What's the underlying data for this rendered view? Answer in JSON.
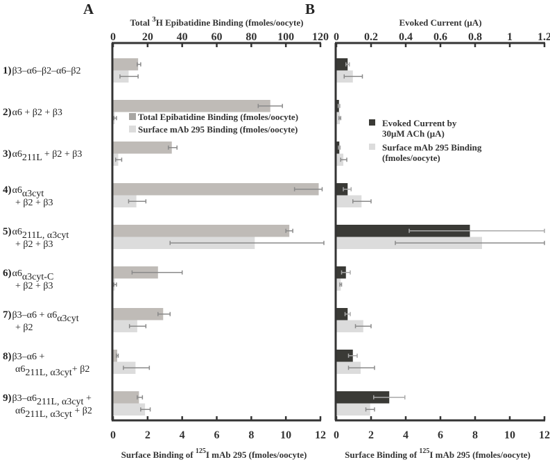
{
  "panels": {
    "A": {
      "letter": "A"
    },
    "B": {
      "letter": "B"
    }
  },
  "legendA": {
    "items": [
      {
        "label": "Total Epibatidine Binding (fmoles/oocyte)",
        "color": "#bfbbb7"
      },
      {
        "label": "Surface mAb 295 Binding (fmoles/oocyte)",
        "color": "#dcdcdc"
      }
    ]
  },
  "legendB": {
    "items": [
      {
        "lines": [
          "Evoked Current by",
          "30μM ACh (μA)"
        ],
        "color": "#3a3a36"
      },
      {
        "lines": [
          "Surface mAb 295 Binding",
          "(fmoles/oocyte)"
        ],
        "color": "#dcdcdc"
      }
    ]
  },
  "categories": [
    {
      "num": "1)",
      "lines": [
        [
          [
            "β3–α6–β2–α6–β2",
            ""
          ]
        ]
      ]
    },
    {
      "num": "2)",
      "lines": [
        [
          [
            "α6 + β2 + β3",
            ""
          ]
        ]
      ]
    },
    {
      "num": "3)",
      "lines": [
        [
          [
            "α6",
            ""
          ],
          [
            "211L",
            "sub"
          ],
          [
            " + β2 + β3",
            ""
          ]
        ]
      ]
    },
    {
      "num": "4)",
      "lines": [
        [
          [
            "α6",
            ""
          ],
          [
            "α3cyt",
            "sub"
          ]
        ],
        [
          [
            "+ β2 + β3",
            ""
          ]
        ]
      ]
    },
    {
      "num": "5)",
      "lines": [
        [
          [
            "α6",
            ""
          ],
          [
            "211L, α3cyt",
            "sub"
          ]
        ],
        [
          [
            "+ β2 + β3",
            ""
          ]
        ]
      ]
    },
    {
      "num": "6)",
      "lines": [
        [
          [
            "α6",
            ""
          ],
          [
            "α3cyt-C",
            "sub"
          ]
        ],
        [
          [
            "+ β2 + β3",
            ""
          ]
        ]
      ]
    },
    {
      "num": "7)",
      "lines": [
        [
          [
            "β3–α6 + α6",
            ""
          ],
          [
            "α3cyt",
            "sub"
          ]
        ],
        [
          [
            "+ β2",
            ""
          ]
        ]
      ]
    },
    {
      "num": "8)",
      "lines": [
        [
          [
            "β3–α6 +",
            ""
          ]
        ],
        [
          [
            "α6",
            ""
          ],
          [
            "211L, α3cyt",
            "sub"
          ],
          [
            "+ β2",
            ""
          ]
        ]
      ]
    },
    {
      "num": "9)",
      "lines": [
        [
          [
            "β3–α6",
            ""
          ],
          [
            "211L, α3cyt",
            "sub"
          ],
          [
            " +",
            ""
          ]
        ],
        [
          [
            "α6",
            ""
          ],
          [
            "211L, α3cyt",
            "sub"
          ],
          [
            " + β2",
            ""
          ]
        ]
      ]
    }
  ],
  "chart_data": [
    {
      "type": "bar",
      "orientation": "horizontal",
      "panel": "A",
      "title": "",
      "top_axis": {
        "label": "Total 3H Epibatidine Binding (fmoles/oocyte)",
        "label_sup": "3",
        "range": [
          0,
          120
        ],
        "ticks": [
          "0",
          "20",
          "40",
          "60",
          "80",
          "100",
          "120"
        ]
      },
      "bottom_axis": {
        "label": "Surface Binding of 125I mAb 295 (fmoles/oocyte)",
        "label_sup": "125",
        "range": [
          0,
          12
        ],
        "ticks": [
          "0",
          "2",
          "4",
          "6",
          "8",
          "10",
          "12"
        ]
      },
      "categories": [
        "1",
        "2",
        "3",
        "4",
        "5",
        "6",
        "7",
        "8",
        "9"
      ],
      "series": [
        {
          "name": "Total Epibatidine Binding (fmoles/oocyte)",
          "axis": "top",
          "color": "#bfbbb7",
          "values": [
            14.5,
            91,
            34,
            119,
            102,
            26,
            29,
            2.4,
            15
          ],
          "err_low": [
            14,
            84,
            32,
            105,
            100,
            11,
            26,
            2,
            14
          ],
          "err_high": [
            16,
            98,
            37,
            121,
            104,
            40,
            33,
            3,
            17
          ]
        },
        {
          "name": "Surface mAb 295 Binding (fmoles/oocyte)",
          "axis": "bottom",
          "color": "#dcdcdc",
          "values": [
            0.9,
            0.1,
            0.3,
            1.35,
            8.2,
            0.1,
            1.4,
            1.3,
            1.85
          ],
          "err_low": [
            0.4,
            0.05,
            0.15,
            0.9,
            3.3,
            0.05,
            0.95,
            0.6,
            1.6
          ],
          "err_high": [
            1.45,
            0.2,
            0.5,
            1.9,
            12.2,
            0.2,
            1.9,
            2.1,
            2.15
          ]
        }
      ]
    },
    {
      "type": "bar",
      "orientation": "horizontal",
      "panel": "B",
      "title": "",
      "top_axis": {
        "label": "Evoked Current (μA)",
        "range": [
          0,
          1.2
        ],
        "ticks": [
          "0",
          "0.2",
          "0.4",
          "0.6",
          "0.8",
          "1",
          "1.2"
        ]
      },
      "bottom_axis": {
        "label": "Surface Binding of 125I mAb 295 (fmoles/oocyte)",
        "label_sup": "125",
        "range": [
          0,
          12
        ],
        "ticks": [
          "0",
          "2",
          "4",
          "6",
          "8",
          "10",
          "12"
        ]
      },
      "categories": [
        "1",
        "2",
        "3",
        "4",
        "5",
        "6",
        "7",
        "8",
        "9"
      ],
      "series": [
        {
          "name": "Evoked Current by 30μM ACh (μA)",
          "axis": "top",
          "color": "#3a3a36",
          "values": [
            0.065,
            0.015,
            0.017,
            0.065,
            0.77,
            0.055,
            0.065,
            0.095,
            0.305
          ],
          "err_low": [
            0.055,
            0.01,
            0.012,
            0.04,
            0.42,
            0.03,
            0.05,
            0.07,
            0.215
          ],
          "err_high": [
            0.075,
            0.02,
            0.022,
            0.085,
            1.2,
            0.08,
            0.08,
            0.12,
            0.395
          ]
        },
        {
          "name": "Surface mAb 295 Binding (fmoles/oocyte)",
          "axis": "bottom",
          "color": "#dcdcdc",
          "values": [
            0.95,
            0.2,
            0.4,
            1.45,
            8.4,
            0.25,
            1.55,
            1.4,
            1.95
          ],
          "err_low": [
            0.45,
            0.15,
            0.25,
            0.95,
            3.4,
            0.2,
            1.1,
            0.7,
            1.7
          ],
          "err_high": [
            1.5,
            0.25,
            0.6,
            2.0,
            12.0,
            0.3,
            2.0,
            2.2,
            2.2
          ]
        }
      ]
    }
  ]
}
